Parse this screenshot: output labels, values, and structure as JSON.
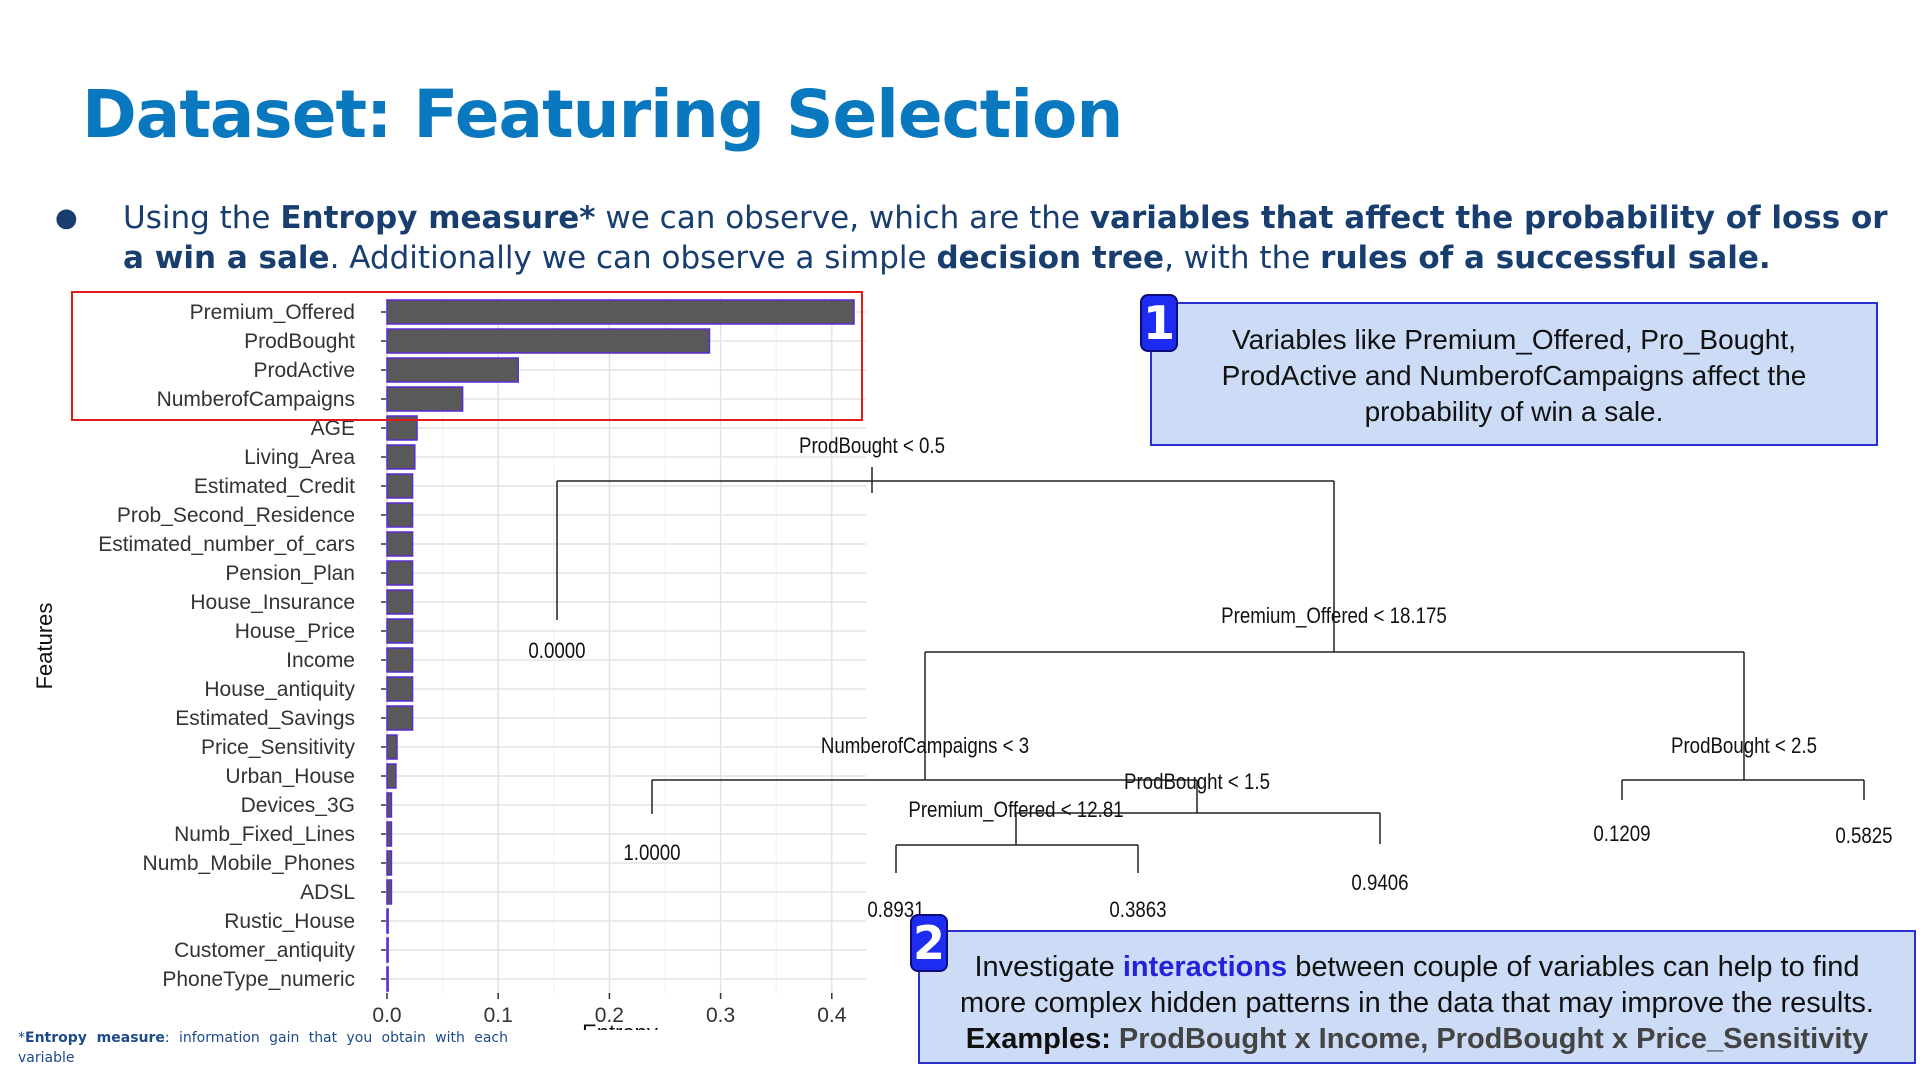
{
  "title": "Dataset: Featuring Selection",
  "bullet": {
    "t1": "Using the ",
    "b1": "Entropy measure*",
    "t2": " we can observe, which are the ",
    "b2": "variables that affect the probability of loss or a win a sale",
    "t3": ". Additionally we can observe a simple ",
    "b3": "decision tree",
    "t4": ", with the ",
    "b4": "rules of a successful sale."
  },
  "chart_data": [
    {
      "type": "bar",
      "orientation": "horizontal",
      "categories": [
        "Premium_Offered",
        "ProdBought",
        "ProdActive",
        "NumberofCampaigns",
        "AGE",
        "Living_Area",
        "Estimated_Credit",
        "Prob_Second_Residence",
        "Estimated_number_of_cars",
        "Pension_Plan",
        "House_Insurance",
        "House_Price",
        "Income",
        "House_antiquity",
        "Estimated_Savings",
        "Price_Sensitivity",
        "Urban_House",
        "Devices_3G",
        "Numb_Fixed_Lines",
        "Numb_Mobile_Phones",
        "ADSL",
        "Rustic_House",
        "Customer_antiquity",
        "PhoneType_numeric"
      ],
      "values": [
        0.42,
        0.29,
        0.118,
        0.068,
        0.027,
        0.025,
        0.023,
        0.023,
        0.023,
        0.023,
        0.023,
        0.023,
        0.023,
        0.023,
        0.023,
        0.009,
        0.008,
        0.004,
        0.004,
        0.004,
        0.004,
        0.001,
        0.001,
        0.001
      ],
      "xlabel": "Entropy",
      "ylabel": "Features",
      "xticks": [
        "0.0",
        "0.1",
        "0.2",
        "0.3",
        "0.4"
      ],
      "xlim": [
        0,
        0.44
      ],
      "grid": true,
      "bar_color": "#595959",
      "bar_edge_color": "#5b2bd6",
      "highlight_box_color": "#e0191b"
    },
    {
      "type": "decision_tree",
      "root": {
        "split": "ProdBought < 0.5",
        "left": {
          "leaf": "0.0000"
        },
        "right": {
          "split": "Premium_Offered < 18.175",
          "left": {
            "split": "NumberofCampaigns < 3",
            "left": {
              "leaf": "1.0000"
            },
            "right": {
              "split": "ProdBought < 1.5",
              "left": {
                "split": "Premium_Offered < 12.81",
                "left": {
                  "leaf": "0.8931"
                },
                "right": {
                  "leaf": "0.3863"
                }
              },
              "right": {
                "leaf": "0.9406"
              }
            }
          },
          "right": {
            "split": "ProdBought < 2.5",
            "left": {
              "leaf": "0.1209"
            },
            "right": {
              "leaf": "0.5825"
            }
          }
        }
      }
    }
  ],
  "callout1": {
    "badge": "1",
    "line1": "Variables like Premium_Offered, Pro_Bought,",
    "line2": "ProdActive and NumberofCampaigns affect the",
    "line3": "probability of win a sale."
  },
  "callout2": {
    "badge": "2",
    "t1": "Investigate ",
    "hl": "interactions",
    "t2": " between couple of variables can help to find",
    "line2": "more complex hidden patterns in the data that may improve the results.",
    "ex_label": "Examples: ",
    "ex_val": "ProdBought x Income, ProdBought x Price_Sensitivity"
  },
  "footnote": {
    "bold": "Entropy measure",
    "text": ": information gain that you obtain with each variable"
  },
  "colors": {
    "title": "#0a78be",
    "body_text": "#173e6e",
    "callout_bg": "#ccdcf6",
    "callout_border": "#2b2fd0",
    "badge": "#1d2cf0"
  }
}
